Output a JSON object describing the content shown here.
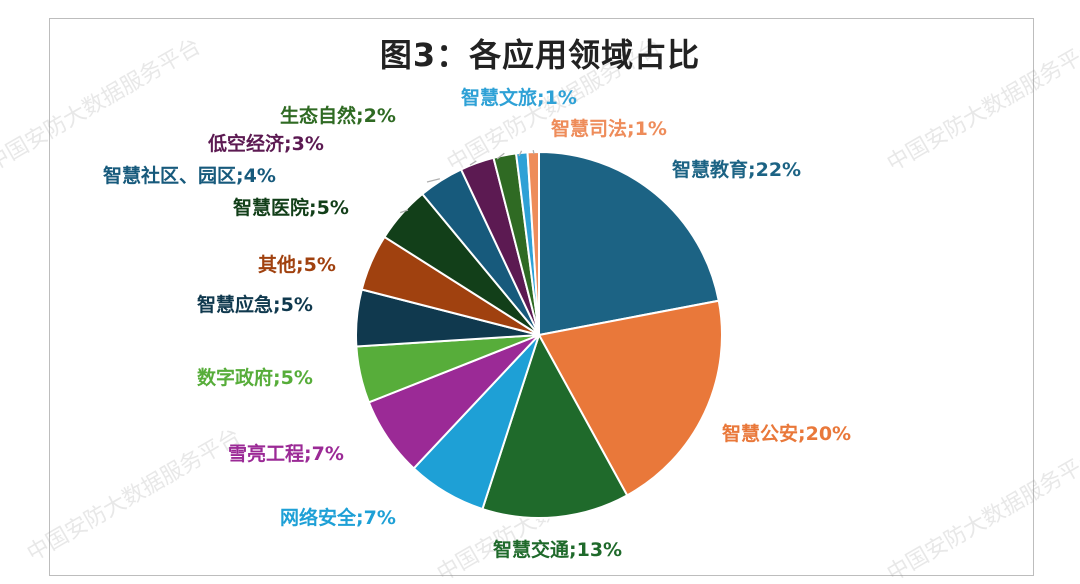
{
  "watermark_text": "中国安防大数据服务平台",
  "chart_data": {
    "type": "pie",
    "title": "图3：各应用领域占比",
    "slices": [
      {
        "name": "智慧教育",
        "value": 22,
        "label": "智慧教育;22%",
        "color": "#1c6384"
      },
      {
        "name": "智慧公安",
        "value": 20,
        "label": "智慧公安;20%",
        "color": "#e9783a"
      },
      {
        "name": "智慧交通",
        "value": 13,
        "label": "智慧交通;13%",
        "color": "#1f6a2b"
      },
      {
        "name": "网络安全",
        "value": 7,
        "label": "网络安全;7%",
        "color": "#1ea0d6"
      },
      {
        "name": "雪亮工程",
        "value": 7,
        "label": "雪亮工程;7%",
        "color": "#9b2a96"
      },
      {
        "name": "数字政府",
        "value": 5,
        "label": "数字政府;5%",
        "color": "#57ad3a"
      },
      {
        "name": "智慧应急",
        "value": 5,
        "label": "智慧应急;5%",
        "color": "#10394e"
      },
      {
        "name": "其他",
        "value": 5,
        "label": "其他;5%",
        "color": "#a0410f"
      },
      {
        "name": "智慧医院",
        "value": 5,
        "label": "智慧医院;5%",
        "color": "#123f19"
      },
      {
        "name": "智慧社区、园区",
        "value": 4,
        "label": "智慧社区、园区;4%",
        "color": "#175a7c"
      },
      {
        "name": "低空经济",
        "value": 3,
        "label": "低空经济;3%",
        "color": "#5c1a52"
      },
      {
        "name": "生态自然",
        "value": 2,
        "label": "生态自然;2%",
        "color": "#2f6a23"
      },
      {
        "name": "智慧文旅",
        "value": 1,
        "label": "智慧文旅;1%",
        "color": "#2ea1d6"
      },
      {
        "name": "智慧司法",
        "value": 1,
        "label": "智慧司法;1%",
        "color": "#ee8c5a"
      }
    ],
    "label_colors": {
      "智慧教育": "#1c6384",
      "智慧公安": "#e9783a",
      "智慧交通": "#1f6a2b",
      "网络安全": "#1ea0d6",
      "雪亮工程": "#9b2a96",
      "数字政府": "#57ad3a",
      "智慧应急": "#10394e",
      "其他": "#a0410f",
      "智慧医院": "#123f19",
      "智慧社区、园区": "#175a7c",
      "低空经济": "#5c1a52",
      "生态自然": "#2f6a23",
      "智慧文旅": "#2ea1d6",
      "智慧司法": "#ee8c5a"
    },
    "legend": "none",
    "start_angle": "12 o'clock",
    "direction": "clockwise"
  }
}
